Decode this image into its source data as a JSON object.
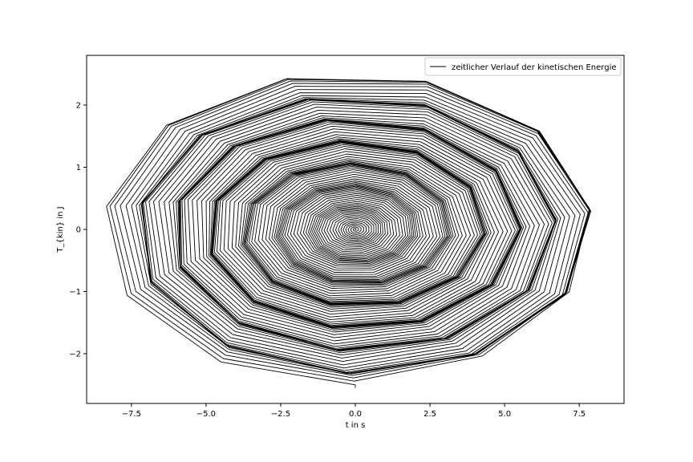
{
  "chart_data": {
    "type": "line",
    "title": "",
    "xlabel": "t in s",
    "ylabel": "T_{kin} in J",
    "xlim": [
      -9.0,
      9.0
    ],
    "ylim": [
      -2.8,
      2.8
    ],
    "xticks": [
      -7.5,
      -5.0,
      -2.5,
      0.0,
      2.5,
      5.0,
      7.5
    ],
    "xtick_labels": [
      "−7.5",
      "−5.0",
      "−2.5",
      "0.0",
      "2.5",
      "5.0",
      "7.5"
    ],
    "yticks": [
      -2,
      -1,
      0,
      1,
      2
    ],
    "ytick_labels": [
      "−2",
      "−1",
      "0",
      "1",
      "2"
    ],
    "grid": false,
    "legend_position": "top-right",
    "series": [
      {
        "name": "zeitlicher Verlauf der kinetischen Energie",
        "color": "#000000",
        "shape": "spiral",
        "x_amplitude_max": 8.2,
        "y_amplitude_max": 2.5,
        "start": [
          0.0,
          -2.55
        ],
        "end": [
          0.0,
          0.0
        ],
        "turns": 95
      }
    ]
  }
}
